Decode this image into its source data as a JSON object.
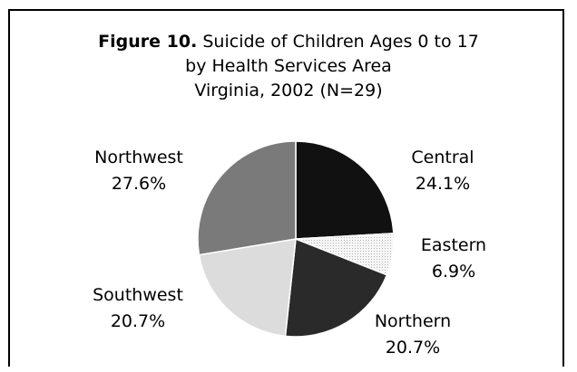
{
  "chart_data": {
    "type": "pie",
    "title_label": "Figure 10.",
    "title_line1": "Suicide of Children Ages 0 to 17",
    "title_line2": "by Health Services Area",
    "title_line3": "Virginia, 2002 (N=29)",
    "slices": [
      {
        "name": "Central",
        "value": 24.1,
        "label": "24.1%",
        "color": "#111111"
      },
      {
        "name": "Eastern",
        "value": 6.9,
        "label": "6.9%",
        "color": "#f4f4f4"
      },
      {
        "name": "Northern",
        "value": 20.7,
        "label": "20.7%",
        "color": "#2a2a2a"
      },
      {
        "name": "Southwest",
        "value": 20.7,
        "label": "20.7%",
        "color": "#dcdcdc"
      },
      {
        "name": "Northwest",
        "value": 27.6,
        "label": "27.6%",
        "color": "#7a7a7a"
      }
    ]
  }
}
